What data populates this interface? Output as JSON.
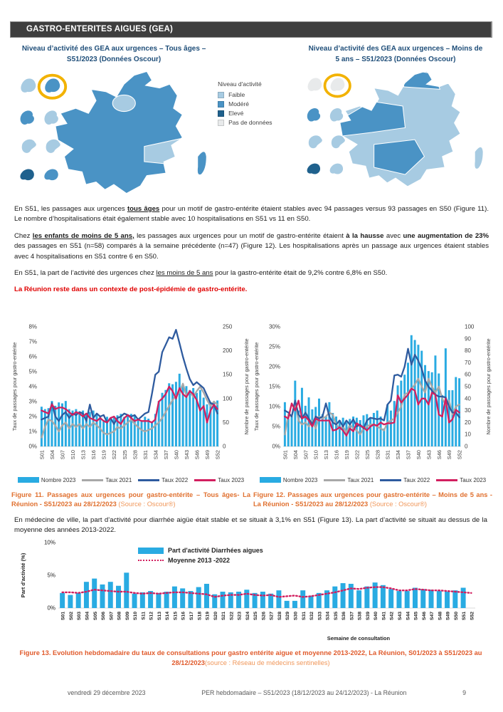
{
  "header": {
    "title": "GASTRO-ENTERITES AIGUES (GEA)"
  },
  "maps": {
    "left": {
      "title": "Niveau d’activité des GEA aux urgences – Tous âges – S51/2023 (Données Oscour)",
      "base": "modere",
      "regions": {
        "north": "modere",
        "nw": "modere",
        "idf": "faible",
        "paca": "faible",
        "occitanie": "modere",
        "corse": "modere"
      },
      "overseas": [
        "faible",
        "modere",
        "faible",
        "eleve",
        "modere",
        "faible",
        "faible",
        "modere"
      ],
      "highlight": "reunion"
    },
    "right": {
      "title": "Niveau d’activité des GEA aux urgences – Moins de 5 ans – S51/2023 (Données Oscour)",
      "base": "faible",
      "regions": {
        "north": "modere",
        "nw": "modere",
        "idf": "faible",
        "paca": "faible",
        "occitanie": "modere",
        "corse": "faible"
      },
      "overseas": [
        "nodata",
        "modere",
        "faible",
        "eleve",
        "nodata",
        "faible",
        "faible",
        "faible"
      ],
      "highlight": "reunion"
    },
    "legend": {
      "title": "Niveau d'activité",
      "items": [
        {
          "label": "Faible",
          "color": "#a7cbe2"
        },
        {
          "label": "Modéré",
          "color": "#4a93c5"
        },
        {
          "label": "Elevé",
          "color": "#1f618d"
        },
        {
          "label": "Pas de données",
          "color": "#e8eaeb"
        }
      ]
    }
  },
  "paragraphs": [
    [
      {
        "t": "En S51, les passages aux urgences "
      },
      {
        "t": "tous âges",
        "b": 1,
        "u": 1
      },
      {
        "t": " pour un motif de gastro-entérite étaient stables avec 94 passages versus 93 passages en S50 (Figure 11). Le nombre d’hospitalisations était également stable avec 10 hospitalisations en S51 vs 11 en S50."
      }
    ],
    [
      {
        "t": "Chez "
      },
      {
        "t": "les enfants de moins de 5 ans,",
        "b": 1,
        "u": 1
      },
      {
        "t": " les passages aux urgences pour un motif de gastro-entérite étaient "
      },
      {
        "t": "à la hausse",
        "b": 1
      },
      {
        "t": " avec "
      },
      {
        "t": "une augmentation de 23%",
        "b": 1
      },
      {
        "t": " des passages en S51 (n=58) comparés à la semaine précédente (n=47) (Figure 12). Les hospitalisations après un passage aux urgences étaient stables avec 4 hospitalisations en S51 contre 6 en S50."
      }
    ],
    [
      {
        "t": "En S51, la part de l’activité des urgences chez "
      },
      {
        "t": "les moins de 5 ans",
        "u": 1
      },
      {
        "t": "  pour la gastro-entérite était de 9,2% contre 6,8% en S50."
      }
    ],
    [
      {
        "t": "En médecine de ville, la part d’activité pour diarrhée aigüe était stable et se situait à 3,1% en S51 (Figure 13). La part d’activité se situait au dessus de la moyenne des années 2013-2022."
      }
    ]
  ],
  "alert": "La Réunion reste dans un contexte de post-épidémie de gastro-entérite.",
  "figures": {
    "fig11": {
      "bold": "Figure 11. Passages aux urgences pour gastro-entérite – Tous âges- La Réunion - S51/2023 au 28/12/2023 ",
      "source": "(Source : Oscour®)"
    },
    "fig12": {
      "bold": "Figure 12. Passages aux urgences pour gastro-entérite  – Moins de 5 ans - La Réunion - S51/2023 au 28/12/2023 ",
      "source": "(Source : Oscour®)"
    },
    "fig13": {
      "bold": "Figure 13. Evolution hebdomadaire du taux de consultations pour gastro entérite aigue et moyenne 2013-2022, La Réunion, S01/2023 à S51/2023 au 28/12/2023",
      "source": "(source : Réseau de médecins sentinelles)"
    }
  },
  "footer": {
    "date": "vendredi 29 décembre 2023",
    "center": "PER hebdomadaire – S51/2023 (18/12/2023 au 24/12/2023) - La Réunion",
    "page": "9"
  },
  "chart_data": [
    {
      "id": "fig11",
      "type": "bar+line",
      "title": "Passages aux urgences pour gastro-entérite – Tous âges",
      "categories": [
        "S01",
        "S02",
        "S03",
        "S04",
        "S05",
        "S06",
        "S07",
        "S08",
        "S09",
        "S10",
        "S11",
        "S12",
        "S13",
        "S14",
        "S15",
        "S16",
        "S17",
        "S18",
        "S19",
        "S20",
        "S21",
        "S22",
        "S23",
        "S24",
        "S25",
        "S26",
        "S27",
        "S28",
        "S29",
        "S30",
        "S31",
        "S32",
        "S33",
        "S34",
        "S35",
        "S36",
        "S37",
        "S38",
        "S39",
        "S40",
        "S41",
        "S42",
        "S43",
        "S44",
        "S45",
        "S46",
        "S47",
        "S48",
        "S49",
        "S50",
        "S51",
        "S52"
      ],
      "left_axis": {
        "label": "Taux de passages pour gastro-entérite",
        "min": 0,
        "max": 8,
        "ticks": [
          0,
          1,
          2,
          3,
          4,
          5,
          6,
          7,
          8
        ],
        "unit": "%"
      },
      "right_axis": {
        "label": "Nombre de passages pour gastro-entérite",
        "min": 0,
        "max": 250,
        "ticks": [
          0,
          50,
          100,
          150,
          200,
          250
        ]
      },
      "x_tick_every": 3,
      "series": [
        {
          "name": "Nombre 2023",
          "type": "bar",
          "axis": "right",
          "color": "#29abe2",
          "values": [
            83,
            78,
            80,
            95,
            85,
            92,
            90,
            95,
            78,
            75,
            78,
            72,
            75,
            70,
            72,
            75,
            68,
            62,
            55,
            62,
            58,
            62,
            65,
            68,
            62,
            65,
            68,
            65,
            58,
            52,
            62,
            58,
            52,
            68,
            95,
            112,
            118,
            132,
            130,
            135,
            152,
            130,
            126,
            118,
            122,
            112,
            118,
            102,
            88,
            93,
            94,
            96
          ]
        },
        {
          "name": "Taux 2021",
          "type": "line",
          "axis": "left",
          "color": "#a8a8a8",
          "values": [
            0.6,
            1.3,
            1.8,
            1.7,
            1.4,
            1.0,
            1.4,
            1.6,
            1.2,
            1.5,
            1.3,
            1.5,
            1.2,
            1.5,
            1.3,
            1.6,
            1.4,
            1.2,
            0.9,
            0.8,
            0.9,
            1.0,
            1.3,
            1.2,
            1.4,
            1.6,
            1.8,
            1.5,
            1.3,
            1.1,
            1.0,
            1.1,
            1.2,
            1.4,
            1.6,
            1.9,
            2.3,
            2.7,
            3.1,
            3.4,
            3.6,
            4.2,
            3.4,
            3.7,
            3.3,
            3.7,
            4.0,
            3.6,
            3.1,
            2.7,
            3.0,
            2.8
          ]
        },
        {
          "name": "Taux 2022",
          "type": "line",
          "axis": "left",
          "color": "#2e5b9f",
          "values": [
            1.8,
            1.9,
            2.0,
            2.9,
            2.0,
            1.7,
            2.1,
            2.3,
            1.9,
            2.2,
            2.1,
            2.3,
            2.2,
            1.7,
            2.8,
            1.9,
            2.2,
            2.0,
            2.1,
            1.6,
            1.9,
            1.5,
            1.9,
            2.0,
            2.2,
            2.1,
            2.0,
            2.1,
            1.8,
            2.0,
            2.2,
            2.3,
            3.5,
            4.8,
            5.0,
            6.3,
            6.8,
            7.3,
            7.2,
            7.8,
            6.9,
            6.0,
            5.2,
            4.5,
            4.1,
            4.3,
            4.1,
            3.9,
            3.4,
            2.9,
            2.8,
            2.2
          ]
        },
        {
          "name": "Taux 2023",
          "type": "line",
          "axis": "left",
          "color": "#d21f5f",
          "values": [
            2.4,
            2.3,
            2.2,
            2.8,
            2.5,
            2.6,
            2.6,
            2.5,
            2.3,
            2.1,
            2.3,
            2.2,
            2.0,
            2.2,
            1.9,
            1.8,
            1.7,
            1.9,
            1.7,
            1.6,
            1.9,
            2.0,
            1.7,
            1.5,
            1.9,
            2.1,
            1.9,
            1.7,
            1.8,
            1.7,
            1.7,
            1.7,
            1.6,
            1.8,
            3.0,
            3.2,
            3.5,
            4.0,
            3.7,
            3.2,
            3.9,
            3.5,
            3.3,
            3.7,
            3.5,
            3.1,
            2.4,
            2.7,
            1.6,
            2.4,
            2.8,
            2.5
          ]
        }
      ]
    },
    {
      "id": "fig12",
      "type": "bar+line",
      "title": "Passages aux urgences pour gastro-entérite – Moins de 5 ans",
      "categories": [
        "S01",
        "S02",
        "S03",
        "S04",
        "S05",
        "S06",
        "S07",
        "S08",
        "S09",
        "S10",
        "S11",
        "S12",
        "S13",
        "S14",
        "S15",
        "S16",
        "S17",
        "S18",
        "S19",
        "S20",
        "S21",
        "S22",
        "S23",
        "S24",
        "S25",
        "S26",
        "S27",
        "S28",
        "S29",
        "S30",
        "S31",
        "S32",
        "S33",
        "S34",
        "S35",
        "S36",
        "S37",
        "S38",
        "S39",
        "S40",
        "S41",
        "S42",
        "S43",
        "S44",
        "S45",
        "S46",
        "S47",
        "S48",
        "S49",
        "S50",
        "S51",
        "S52"
      ],
      "left_axis": {
        "label": "Taux de passages pour gastro-entérite",
        "min": 0,
        "max": 30,
        "ticks": [
          0,
          5,
          10,
          15,
          20,
          25,
          30
        ],
        "unit": "%"
      },
      "right_axis": {
        "label": "Nombre de passages pour gastro-entérite",
        "min": 0,
        "max": 100,
        "ticks": [
          0,
          10,
          20,
          30,
          40,
          50,
          60,
          70,
          80,
          90,
          100
        ]
      },
      "x_tick_every": 3,
      "series": [
        {
          "name": "Nombre 2023",
          "type": "bar",
          "axis": "right",
          "color": "#29abe2",
          "values": [
            37,
            23,
            25,
            55,
            30,
            49,
            34,
            41,
            31,
            33,
            40,
            27,
            25,
            37,
            28,
            25,
            22,
            24,
            20,
            23,
            25,
            24,
            22,
            26,
            27,
            24,
            28,
            30,
            25,
            15,
            35,
            30,
            38,
            51,
            55,
            60,
            70,
            93,
            89,
            85,
            80,
            68,
            63,
            62,
            76,
            61,
            43,
            82,
            47,
            47,
            58,
            57
          ]
        },
        {
          "name": "Taux 2021",
          "type": "line",
          "axis": "left",
          "color": "#a8a8a8",
          "values": [
            3.0,
            8.0,
            7.5,
            11.0,
            6.5,
            5.5,
            6.0,
            5.0,
            6.5,
            4.5,
            7.5,
            7.0,
            7.5,
            8.5,
            8.0,
            5.5,
            4.5,
            5.0,
            3.5,
            5.5,
            4.5,
            4.0,
            3.0,
            4.5,
            5.0,
            5.5,
            5.5,
            5.0,
            4.5,
            4.0,
            6.0,
            6.5,
            7.0,
            8.5,
            10.0,
            13.0,
            13.5,
            14.5,
            15.5,
            17.0,
            15.0,
            13.5,
            17.0,
            15.0,
            13.5,
            15.0,
            12.0,
            10.5,
            11.5,
            8.0,
            10.0,
            10.5
          ]
        },
        {
          "name": "Taux 2022",
          "type": "line",
          "axis": "left",
          "color": "#2e5b9f",
          "values": [
            9.0,
            8.5,
            7.5,
            11.5,
            8.0,
            7.0,
            8.5,
            7.0,
            5.5,
            7.5,
            7.0,
            7.5,
            10.8,
            7.5,
            6.0,
            5.5,
            6.5,
            5.0,
            6.5,
            5.5,
            6.8,
            5.0,
            5.5,
            4.5,
            6.5,
            7.2,
            7.0,
            6.8,
            7.0,
            6.5,
            10.5,
            11.5,
            17.8,
            18.0,
            17.5,
            20.0,
            24.5,
            20.5,
            23.0,
            21.5,
            19.5,
            16.5,
            15.0,
            14.0,
            13.0,
            12.5,
            12.5,
            12.3,
            10.0,
            8.5,
            8.5,
            7.3
          ]
        },
        {
          "name": "Taux 2023",
          "type": "line",
          "axis": "left",
          "color": "#d21f5f",
          "values": [
            7.5,
            7.0,
            10.8,
            9.0,
            11.5,
            7.0,
            7.5,
            6.5,
            5.0,
            7.0,
            6.5,
            6.5,
            6.5,
            6.5,
            4.0,
            4.2,
            4.8,
            4.0,
            2.7,
            4.5,
            3.8,
            5.8,
            5.2,
            4.8,
            4.0,
            5.0,
            5.5,
            5.2,
            6.0,
            5.5,
            5.8,
            5.8,
            6.0,
            12.8,
            11.0,
            12.0,
            13.0,
            14.5,
            14.0,
            10.5,
            12.0,
            12.0,
            10.5,
            13.5,
            13.0,
            8.0,
            7.5,
            12.0,
            6.0,
            6.8,
            9.2,
            8.5
          ]
        }
      ]
    },
    {
      "id": "fig13",
      "type": "bar+line",
      "title": "Evolution hebdomadaire du taux de consultations pour gastro entérite aigue et moyenne 2013-2022",
      "categories": [
        "S01",
        "S02",
        "S03",
        "S04",
        "S05",
        "S06",
        "S07",
        "S08",
        "S09",
        "S10",
        "S11",
        "S12",
        "S13",
        "S14",
        "S15",
        "S16",
        "S17",
        "S18",
        "S19",
        "S20",
        "S21",
        "S22",
        "S23",
        "S24",
        "S25",
        "S26",
        "S27",
        "S28",
        "S29",
        "S30",
        "S31",
        "S32",
        "S33",
        "S34",
        "S35",
        "S36",
        "S37",
        "S38",
        "S39",
        "S40",
        "S41",
        "S42",
        "S43",
        "S44",
        "S45",
        "S46",
        "S47",
        "S48",
        "S49",
        "S50",
        "S51",
        "S52"
      ],
      "left_axis": {
        "label": "Part d'activité (%)",
        "min": 0,
        "max": 10,
        "ticks": [
          0,
          5,
          10
        ],
        "unit": "%"
      },
      "xlabel": "Semaine de consultation",
      "x_tick_every": 1,
      "series": [
        {
          "name": "Part d'activité Diarrhées aigues",
          "type": "bar",
          "axis": "left",
          "color": "#29abe2",
          "values": [
            2.3,
            2.0,
            2.3,
            4.0,
            4.5,
            3.6,
            4.0,
            3.4,
            5.4,
            2.2,
            2.4,
            2.6,
            2.3,
            2.5,
            3.3,
            3.0,
            2.6,
            3.2,
            3.7,
            2.1,
            2.5,
            2.4,
            2.5,
            2.8,
            2.3,
            2.5,
            2.2,
            2.7,
            1.1,
            1.1,
            2.7,
            1.9,
            2.3,
            2.7,
            3.3,
            3.8,
            3.7,
            2.7,
            3.3,
            3.9,
            3.5,
            2.9,
            2.6,
            2.6,
            3.1,
            2.9,
            2.8,
            2.6,
            2.5,
            2.7,
            3.1,
            0
          ]
        },
        {
          "name": "Moyenne 2013 -2022",
          "type": "dotted-line",
          "axis": "left",
          "color": "#d21f5f",
          "values": [
            2.4,
            2.4,
            2.3,
            2.5,
            2.8,
            2.7,
            2.6,
            2.5,
            2.5,
            2.3,
            2.2,
            2.3,
            2.2,
            2.3,
            2.4,
            2.4,
            2.3,
            2.2,
            2.1,
            1.7,
            1.9,
            2.0,
            2.0,
            2.2,
            2.0,
            1.9,
            2.0,
            1.7,
            1.8,
            1.9,
            1.7,
            1.8,
            2.0,
            2.2,
            2.4,
            2.7,
            3.0,
            2.9,
            3.1,
            3.2,
            3.2,
            3.0,
            2.7,
            2.7,
            2.9,
            2.8,
            2.7,
            2.7,
            2.6,
            2.5,
            2.4,
            2.3
          ]
        }
      ]
    }
  ]
}
